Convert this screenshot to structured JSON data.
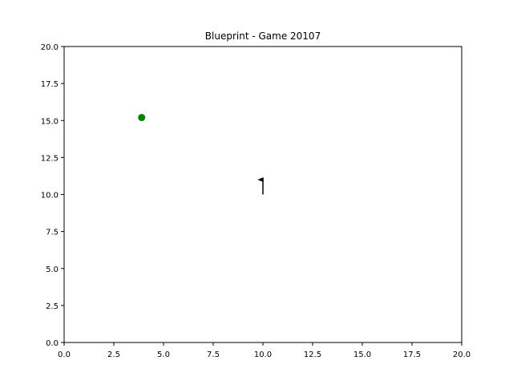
{
  "chart_data": {
    "type": "scatter",
    "title": "Blueprint - Game 20107",
    "xlabel": "",
    "ylabel": "",
    "xlim": [
      0,
      20
    ],
    "ylim": [
      0,
      20
    ],
    "xticks": [
      "0.0",
      "2.5",
      "5.0",
      "7.5",
      "10.0",
      "12.5",
      "15.0",
      "17.5",
      "20.0"
    ],
    "yticks": [
      "0.0",
      "2.5",
      "5.0",
      "7.5",
      "10.0",
      "12.5",
      "15.0",
      "17.5",
      "20.0"
    ],
    "grid": false,
    "points": [
      {
        "x": 3.9,
        "y": 15.2,
        "color": "#008000"
      }
    ],
    "arrows": [
      {
        "x": 10.0,
        "y": 10.0,
        "dx": 0.0,
        "dy": 1.0,
        "color": "#000000"
      }
    ]
  }
}
